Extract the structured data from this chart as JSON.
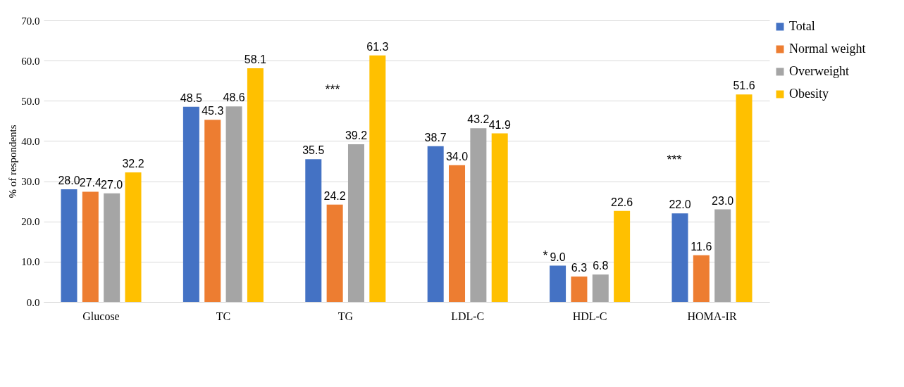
{
  "chart_data": {
    "type": "bar",
    "ylabel": "% of respondents",
    "categories": [
      "Glucose",
      "TC",
      "TG",
      "LDL-C",
      "HDL-C",
      "HOMA-IR"
    ],
    "series": [
      {
        "name": "Total",
        "color": "#4472c4",
        "values": [
          28.0,
          48.5,
          35.5,
          38.7,
          9.0,
          22.0
        ],
        "value_labels": [
          "28.0",
          "48.5",
          "35.5",
          "38.7",
          "9.0",
          "22.0"
        ]
      },
      {
        "name": "Normal weight",
        "color": "#ed7d31",
        "values": [
          27.4,
          45.3,
          24.2,
          34.0,
          6.3,
          11.6
        ],
        "value_labels": [
          "27.4",
          "45.3",
          "24.2",
          "34.0",
          "6.3",
          "11.6"
        ]
      },
      {
        "name": "Overweight",
        "color": "#a5a5a5",
        "values": [
          27.0,
          48.6,
          39.2,
          43.2,
          6.8,
          23.0
        ],
        "value_labels": [
          "27.0",
          "48.6",
          "39.2",
          "43.2",
          "6.8",
          "23.0"
        ]
      },
      {
        "name": "Obesity",
        "color": "#ffc000",
        "values": [
          32.2,
          58.1,
          61.3,
          41.9,
          22.6,
          51.6
        ],
        "value_labels": [
          "32.2",
          "58.1",
          "61.3",
          "41.9",
          "22.6",
          "51.6"
        ]
      }
    ],
    "ylim": [
      0,
      70
    ],
    "yticks": [
      {
        "value": 0,
        "label": "0.0"
      },
      {
        "value": 10,
        "label": "10.0"
      },
      {
        "value": 20,
        "label": "20.0"
      },
      {
        "value": 30,
        "label": "30.0"
      },
      {
        "value": 40,
        "label": "40.0"
      },
      {
        "value": 50,
        "label": "50.0"
      },
      {
        "value": 60,
        "label": "60.0"
      },
      {
        "value": 70,
        "label": "70.0"
      }
    ],
    "grid": "y",
    "legend": "right",
    "annotations": [
      "***",
      "*",
      "***"
    ]
  }
}
